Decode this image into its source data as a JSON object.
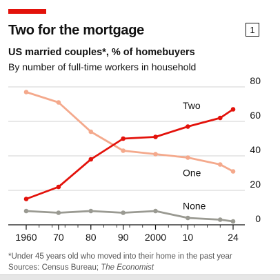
{
  "header": {
    "title": "Two for the mortgage",
    "chart_number": "1",
    "subtitle": "US married couples*, % of homebuyers",
    "description": "By number of full-time workers in household"
  },
  "footer": {
    "footnote": "*Under 45 years old who moved into their home in the past year",
    "sources_prefix": "Sources: Census Bureau; ",
    "sources_italic": "The Economist"
  },
  "colors": {
    "accent": "#e3120b",
    "two": "#e3120b",
    "one": "#f4a98c",
    "none": "#9a9a92",
    "grid": "#d0d0d0"
  },
  "chart_data": {
    "type": "line",
    "x": [
      1960,
      1970,
      1980,
      1990,
      2000,
      2010,
      2020,
      2024
    ],
    "x_tick_values": [
      1960,
      1970,
      1980,
      1990,
      2000,
      2010,
      2024
    ],
    "x_tick_labels": [
      "1960",
      "70",
      "80",
      "90",
      "2000",
      "10",
      "24"
    ],
    "xlim": [
      1960,
      2024
    ],
    "ylim": [
      0,
      80
    ],
    "y_ticks": [
      0,
      20,
      40,
      60,
      80
    ],
    "y_axis_side": "right",
    "grid": true,
    "series": [
      {
        "name": "Two",
        "color_key": "two",
        "values": [
          15,
          22,
          38,
          50,
          51,
          57,
          62,
          67
        ]
      },
      {
        "name": "One",
        "color_key": "one",
        "values": [
          77,
          71,
          54,
          43,
          41,
          39,
          35,
          31
        ]
      },
      {
        "name": "None",
        "color_key": "none",
        "values": [
          8,
          7,
          8,
          7,
          8,
          4,
          3,
          2
        ]
      }
    ]
  }
}
